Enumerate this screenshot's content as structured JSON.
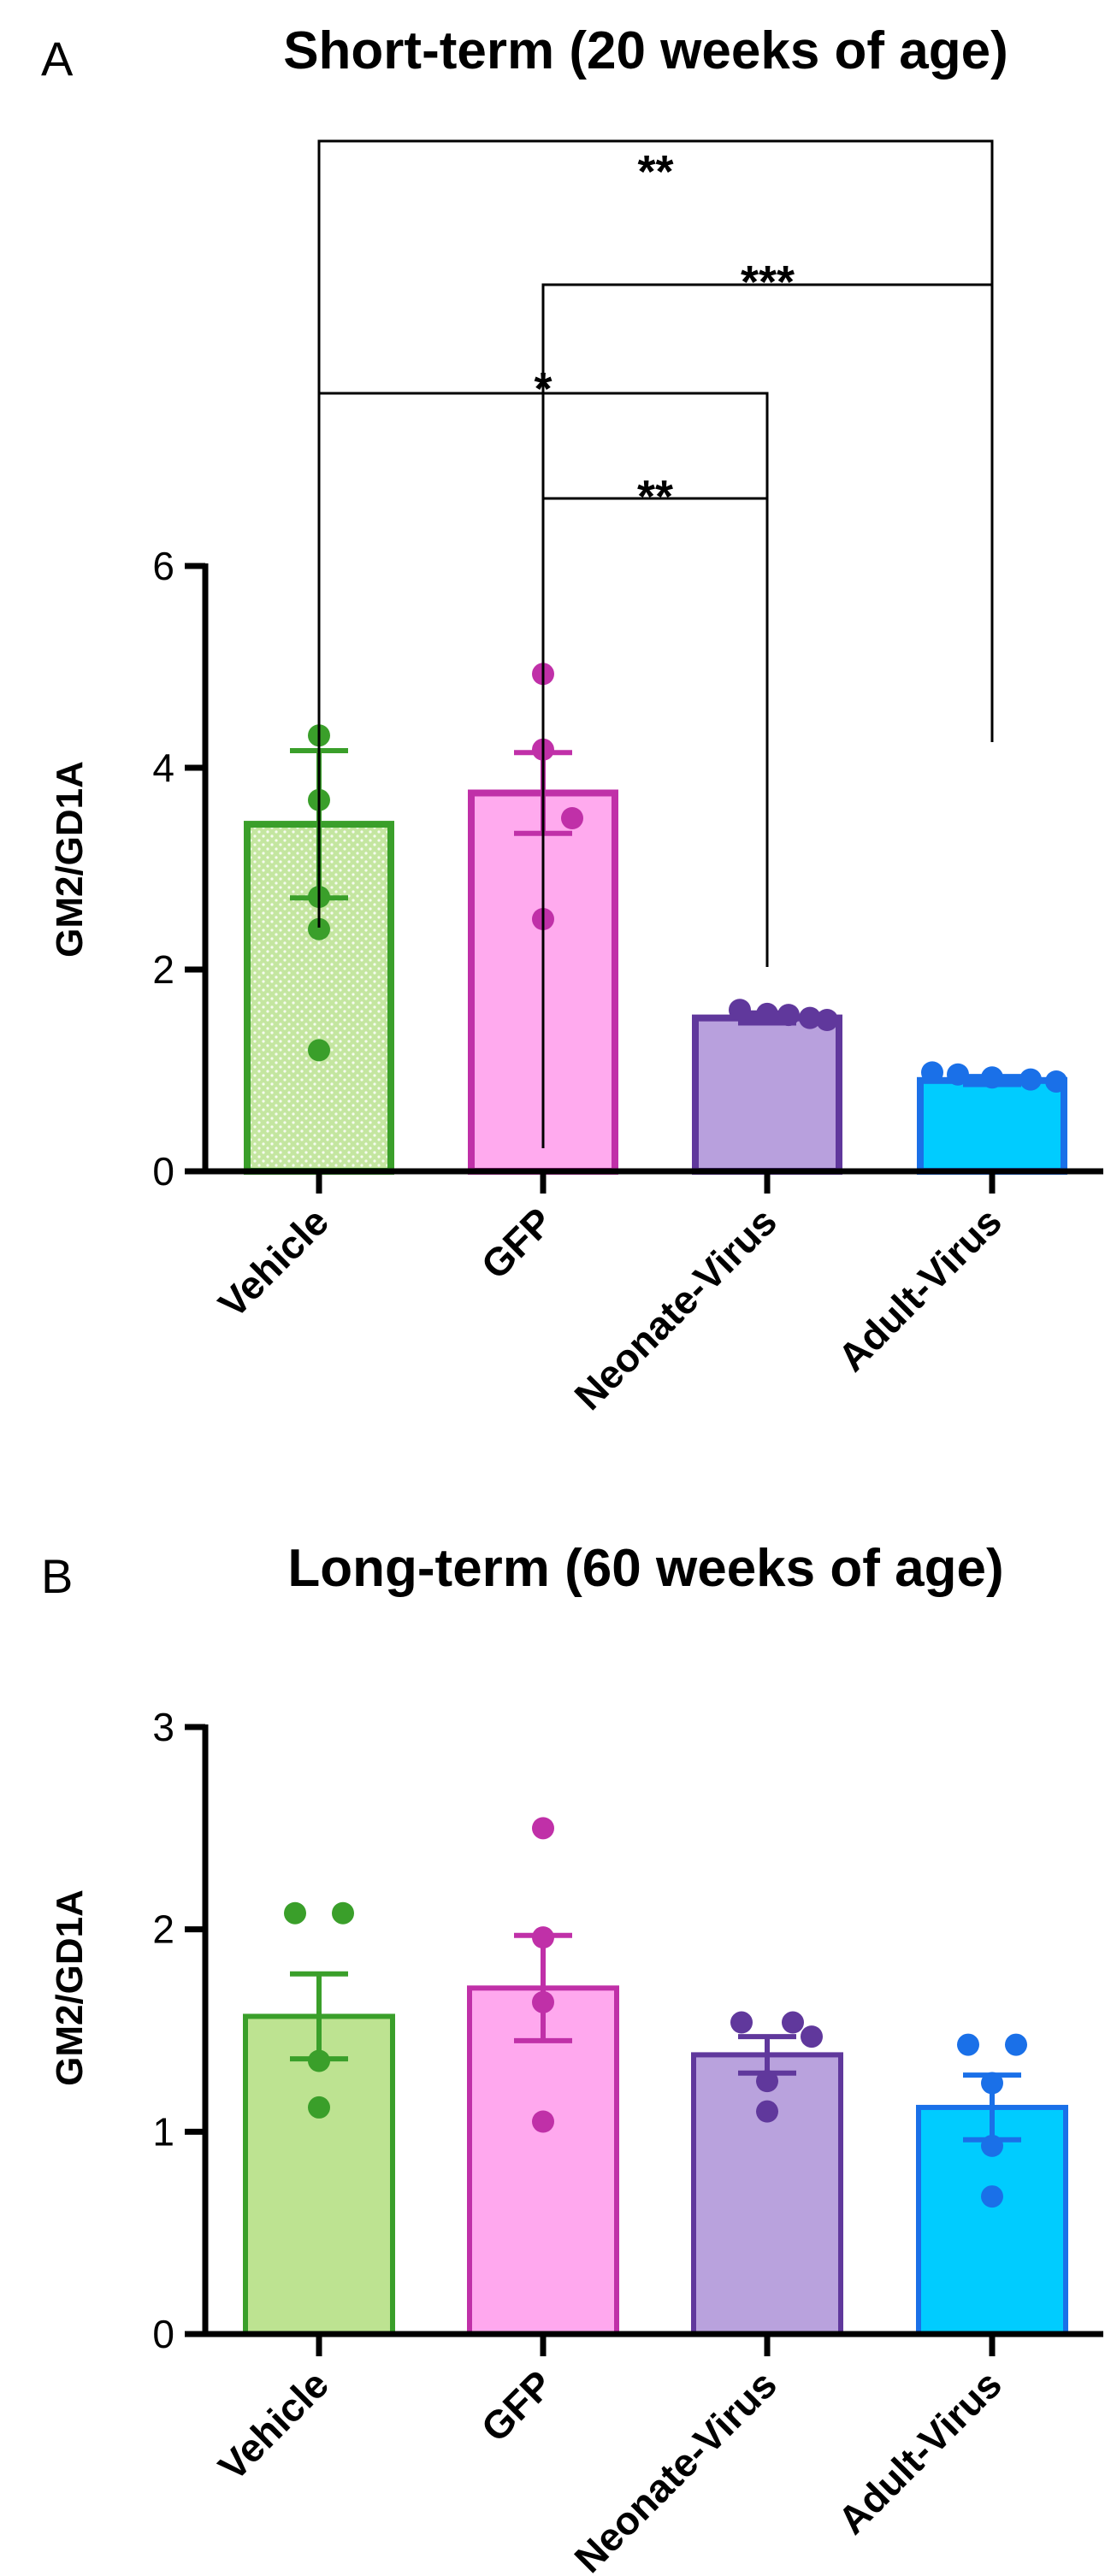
{
  "chart_data": [
    {
      "panel": "A",
      "type": "bar",
      "title": "Short-term (20 weeks of age)",
      "xlabel": "",
      "ylabel": "GM2/GD1A",
      "ylim": [
        0,
        6
      ],
      "yticks": [
        "0",
        "2",
        "4",
        "6"
      ],
      "grid": false,
      "legend": "none",
      "categories": [
        "Vehicle",
        "GFP",
        "Neonate-Virus",
        "Adult-Virus"
      ],
      "values": [
        3.44,
        3.75,
        1.52,
        0.9
      ],
      "sem": [
        0.73,
        0.4,
        0.05,
        0.04
      ],
      "points": [
        [
          4.32,
          3.68,
          2.72,
          2.4,
          1.2
        ],
        [
          4.93,
          4.18,
          3.5,
          2.5
        ],
        [
          1.6,
          1.56,
          1.55,
          1.52,
          1.5
        ],
        [
          0.98,
          0.96,
          0.93,
          0.91,
          0.89
        ]
      ],
      "fill_colors": [
        "#c4e6a0",
        "#ffaaee",
        "#b8a0dd",
        "#00ccff"
      ],
      "edge_colors": [
        "#3a9f2a",
        "#c030a8",
        "#60389c",
        "#1a70e8"
      ],
      "comparisons": [
        {
          "from": 0,
          "to": 3,
          "label": "**"
        },
        {
          "from": 1,
          "to": 3,
          "label": "***"
        },
        {
          "from": 0,
          "to": 2,
          "label": "*"
        },
        {
          "from": 1,
          "to": 2,
          "label": "**"
        }
      ]
    },
    {
      "panel": "B",
      "type": "bar",
      "title": "Long-term (60 weeks of age)",
      "xlabel": "",
      "ylabel": "GM2/GD1A",
      "ylim": [
        0,
        3
      ],
      "yticks": [
        "0",
        "1",
        "2",
        "3"
      ],
      "grid": false,
      "legend": "none",
      "categories": [
        "Vehicle",
        "GFP",
        "Neonate-Virus",
        "Adult-Virus"
      ],
      "values": [
        1.57,
        1.71,
        1.38,
        1.12
      ],
      "sem": [
        0.21,
        0.26,
        0.09,
        0.16
      ],
      "points": [
        [
          2.08,
          2.08,
          1.35,
          1.12
        ],
        [
          2.5,
          1.96,
          1.64,
          1.05
        ],
        [
          1.54,
          1.54,
          1.47,
          1.25,
          1.1
        ],
        [
          1.43,
          1.43,
          1.24,
          0.93,
          0.68
        ]
      ],
      "fill_colors": [
        "#bde391",
        "#ffa8ee",
        "#b9a2dd",
        "#00ccff"
      ],
      "edge_colors": [
        "#3a9f2a",
        "#c030a8",
        "#60389c",
        "#1a70e8"
      ],
      "comparisons": []
    }
  ]
}
